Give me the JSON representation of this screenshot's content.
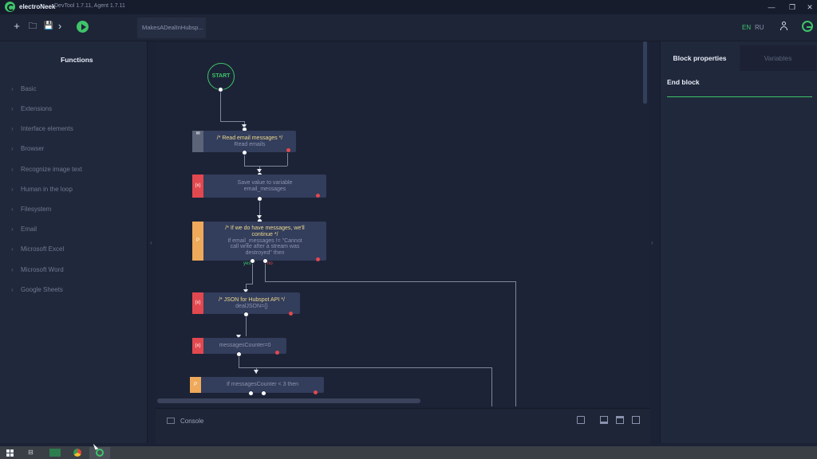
{
  "titlebar": {
    "app_name": "electroNeek",
    "version": "DevTool 1.7.11, Agent 1.7.11",
    "minimize": "—",
    "restore": "❐",
    "close": "✕",
    "logo_icon": "electroneek-logo-icon"
  },
  "toolbar": {
    "new_icon": "+",
    "open_icon": "🗀",
    "save_icon": "💾",
    "more_icon": "›",
    "file_tab": "MakesADealInHubsp...",
    "lang_en": "EN",
    "lang_ru": "RU",
    "accent": "#3fc46a"
  },
  "functions": {
    "title": "Functions",
    "items": [
      "Basic",
      "Extensions",
      "Interface elements",
      "Browser",
      "Recognize image text",
      "Human in the loop",
      "Filesystem",
      "Email",
      "Microsoft Excel",
      "Microsoft Word",
      "Google Sheets"
    ]
  },
  "workflow": {
    "start": "START",
    "blocks": {
      "read_email": {
        "title": "/* Read email messages */",
        "sub": "Read emails"
      },
      "save_value": {
        "line1": "Save value to variable",
        "line2": "email_messages"
      },
      "if_messages": {
        "title1": "/* If we do have messages, we'll",
        "title2": "continue */",
        "sub1": "If email_messages != \"Cannot",
        "sub2": "call write after a stream was",
        "sub3": "destroyed\" then"
      },
      "json": {
        "title": "/* JSON for Hubspot API */",
        "sub": "dealJSON={}"
      },
      "counter": {
        "text": "messagesCounter=0"
      },
      "if_counter": {
        "text": "If messagesCounter < 3 then"
      }
    },
    "yes": "yes",
    "no": "no",
    "icon_var": "(x)",
    "icon_if": "P"
  },
  "console": {
    "label": "Console"
  },
  "right_panel": {
    "tab_properties": "Block properties",
    "tab_variables": "Variables",
    "selected_block": "End block"
  }
}
